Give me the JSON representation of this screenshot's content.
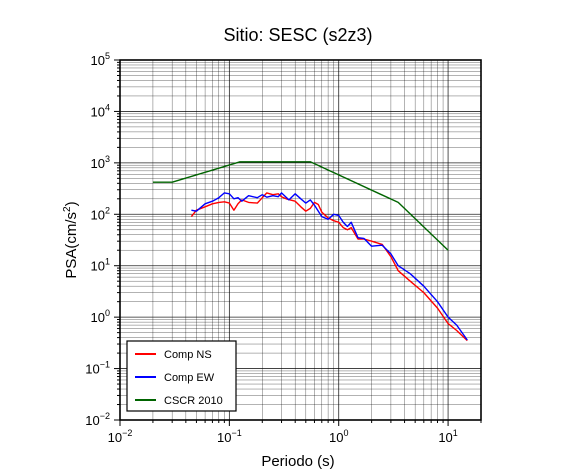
{
  "chart_data": {
    "type": "line",
    "title": "Sitio: SESC (s2z3)",
    "xlabel": "Periodo (s)",
    "ylabel_base": "PSA(cm/s",
    "ylabel_exp": "2",
    "ylabel_end": ")",
    "x_scale": "log",
    "y_scale": "log",
    "xlim": [
      0.01,
      20
    ],
    "ylim": [
      0.01,
      100000
    ],
    "grid": true,
    "legend_position": "bottom-left",
    "x_ticks": [
      {
        "value": 0.01,
        "base": "10",
        "exp": "−2"
      },
      {
        "value": 0.1,
        "base": "10",
        "exp": "−1"
      },
      {
        "value": 1,
        "base": "10",
        "exp": "0"
      },
      {
        "value": 10,
        "base": "10",
        "exp": "1"
      }
    ],
    "y_ticks": [
      {
        "value": 0.01,
        "base": "10",
        "exp": "−2"
      },
      {
        "value": 0.1,
        "base": "10",
        "exp": "−1"
      },
      {
        "value": 1,
        "base": "10",
        "exp": "0"
      },
      {
        "value": 10,
        "base": "10",
        "exp": "1"
      },
      {
        "value": 100,
        "base": "10",
        "exp": "2"
      },
      {
        "value": 1000,
        "base": "10",
        "exp": "3"
      },
      {
        "value": 10000,
        "base": "10",
        "exp": "4"
      },
      {
        "value": 100000,
        "base": "10",
        "exp": "5"
      }
    ],
    "series": [
      {
        "name": "Comp NS",
        "color": "#ff0000",
        "points": [
          [
            0.045,
            90
          ],
          [
            0.05,
            120
          ],
          [
            0.06,
            140
          ],
          [
            0.07,
            160
          ],
          [
            0.08,
            170
          ],
          [
            0.09,
            175
          ],
          [
            0.1,
            165
          ],
          [
            0.11,
            120
          ],
          [
            0.12,
            160
          ],
          [
            0.13,
            190
          ],
          [
            0.15,
            170
          ],
          [
            0.18,
            165
          ],
          [
            0.2,
            210
          ],
          [
            0.22,
            260
          ],
          [
            0.25,
            240
          ],
          [
            0.28,
            250
          ],
          [
            0.3,
            220
          ],
          [
            0.33,
            200
          ],
          [
            0.36,
            190
          ],
          [
            0.4,
            180
          ],
          [
            0.45,
            140
          ],
          [
            0.5,
            115
          ],
          [
            0.55,
            130
          ],
          [
            0.6,
            170
          ],
          [
            0.65,
            155
          ],
          [
            0.7,
            110
          ],
          [
            0.8,
            85
          ],
          [
            0.9,
            75
          ],
          [
            1.0,
            70
          ],
          [
            1.1,
            55
          ],
          [
            1.2,
            50
          ],
          [
            1.3,
            55
          ],
          [
            1.5,
            33
          ],
          [
            1.7,
            33
          ],
          [
            2.0,
            30
          ],
          [
            2.5,
            26
          ],
          [
            3.0,
            15
          ],
          [
            3.5,
            8
          ],
          [
            4.5,
            5
          ],
          [
            6,
            3
          ],
          [
            8,
            1.5
          ],
          [
            10,
            0.75
          ],
          [
            12,
            0.55
          ],
          [
            15,
            0.35
          ]
        ]
      },
      {
        "name": "Comp EW",
        "color": "#0000ff",
        "points": [
          [
            0.045,
            120
          ],
          [
            0.05,
            115
          ],
          [
            0.06,
            160
          ],
          [
            0.07,
            180
          ],
          [
            0.08,
            210
          ],
          [
            0.09,
            260
          ],
          [
            0.1,
            250
          ],
          [
            0.11,
            200
          ],
          [
            0.12,
            210
          ],
          [
            0.13,
            180
          ],
          [
            0.15,
            230
          ],
          [
            0.18,
            210
          ],
          [
            0.2,
            240
          ],
          [
            0.22,
            215
          ],
          [
            0.25,
            230
          ],
          [
            0.28,
            220
          ],
          [
            0.3,
            260
          ],
          [
            0.35,
            190
          ],
          [
            0.4,
            250
          ],
          [
            0.45,
            200
          ],
          [
            0.5,
            165
          ],
          [
            0.55,
            190
          ],
          [
            0.6,
            150
          ],
          [
            0.7,
            90
          ],
          [
            0.8,
            80
          ],
          [
            0.9,
            100
          ],
          [
            1.0,
            95
          ],
          [
            1.1,
            70
          ],
          [
            1.2,
            58
          ],
          [
            1.3,
            70
          ],
          [
            1.5,
            35
          ],
          [
            1.7,
            34
          ],
          [
            2.0,
            24
          ],
          [
            2.5,
            25
          ],
          [
            3.0,
            17
          ],
          [
            3.5,
            10
          ],
          [
            4.5,
            7
          ],
          [
            6,
            4
          ],
          [
            8,
            2
          ],
          [
            10,
            1
          ],
          [
            12,
            0.7
          ],
          [
            15,
            0.36
          ]
        ]
      },
      {
        "name": "CSCR 2010",
        "color": "#006400",
        "points": [
          [
            0.02,
            420
          ],
          [
            0.03,
            420
          ],
          [
            0.125,
            1050
          ],
          [
            0.55,
            1050
          ],
          [
            3.5,
            170
          ],
          [
            10,
            20
          ]
        ]
      }
    ]
  }
}
